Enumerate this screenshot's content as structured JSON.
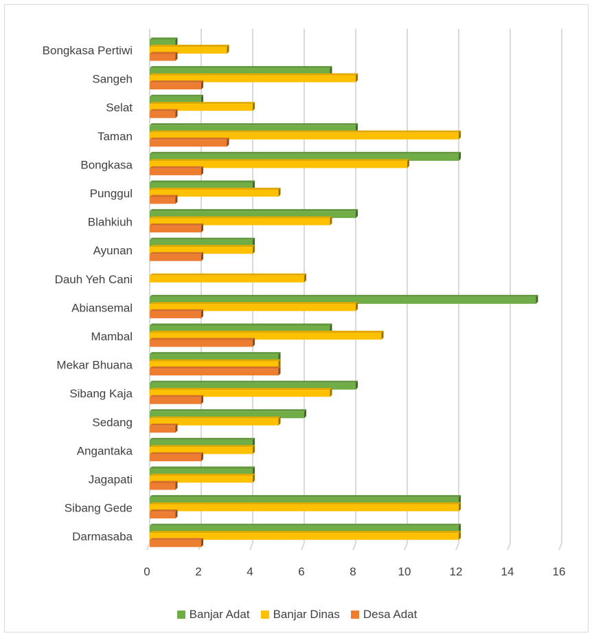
{
  "chart_data": {
    "type": "bar",
    "orientation": "horizontal",
    "style": "3d-clustered",
    "categories": [
      "Bongkasa Pertiwi",
      "Sangeh",
      "Selat",
      "Taman",
      "Bongkasa",
      "Punggul",
      "Blahkiuh",
      "Ayunan",
      "Dauh Yeh Cani",
      "Abiansemal",
      "Mambal",
      "Mekar Bhuana",
      "Sibang Kaja",
      "Sedang",
      "Angantaka",
      "Jagapati",
      "Sibang Gede",
      "Darmasaba"
    ],
    "series": [
      {
        "name": "Banjar Adat",
        "color": "#70ad47",
        "values": [
          1,
          7,
          2,
          8,
          12,
          4,
          8,
          4,
          0,
          15,
          7,
          5,
          8,
          6,
          4,
          4,
          12,
          12
        ]
      },
      {
        "name": "Banjar Dinas",
        "color": "#ffc000",
        "values": [
          3,
          8,
          4,
          12,
          10,
          5,
          7,
          4,
          6,
          8,
          9,
          5,
          7,
          5,
          4,
          4,
          12,
          12
        ]
      },
      {
        "name": "Desa Adat",
        "color": "#ed7d31",
        "values": [
          1,
          2,
          1,
          3,
          2,
          1,
          2,
          2,
          0,
          2,
          4,
          5,
          2,
          1,
          2,
          1,
          1,
          2
        ]
      }
    ],
    "xlim": [
      0,
      16
    ],
    "xticks": [
      "0",
      "2",
      "4",
      "6",
      "8",
      "10",
      "12",
      "14",
      "16"
    ],
    "title": "",
    "xlabel": "",
    "ylabel": "",
    "grid": "vertical-major",
    "legend_position": "bottom"
  }
}
